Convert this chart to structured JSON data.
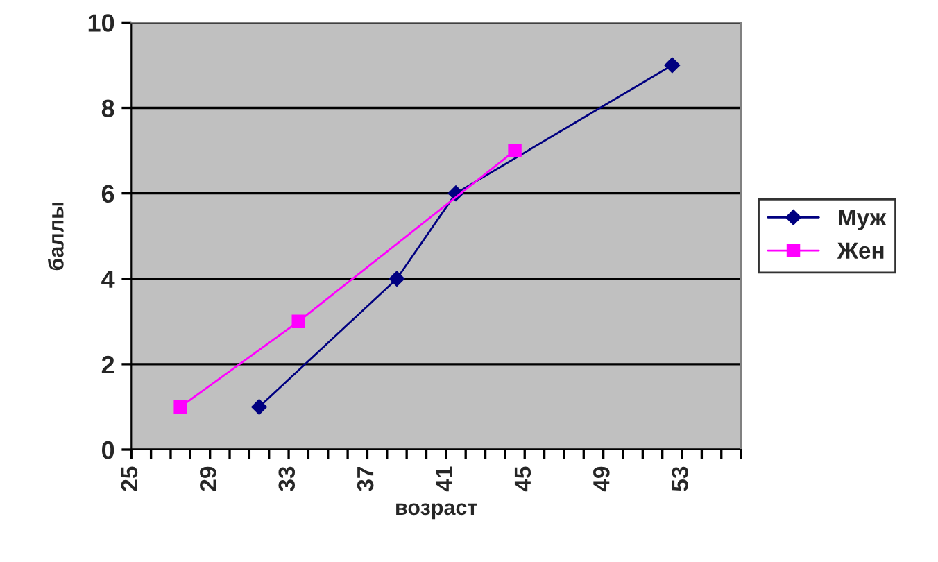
{
  "chart_data": {
    "type": "line",
    "xlabel": "возраст",
    "ylabel": "баллы",
    "series": [
      {
        "name": "Муж",
        "color": "#000080",
        "marker": "diamond",
        "x": [
          31.5,
          38.5,
          41.5,
          52.5
        ],
        "values": [
          1,
          4,
          6,
          9
        ]
      },
      {
        "name": "Жен",
        "color": "#ff00ff",
        "marker": "square",
        "x": [
          27.5,
          33.5,
          44.5
        ],
        "values": [
          1,
          3,
          7
        ]
      }
    ],
    "xlim": [
      25,
      56
    ],
    "xticks": [
      25,
      {
        "value": 26,
        "label": null
      },
      {
        "value": 27,
        "label": null
      },
      {
        "value": 28,
        "label": null
      },
      29,
      {
        "value": 30,
        "label": null
      },
      {
        "value": 31,
        "label": null
      },
      {
        "value": 32,
        "label": null
      },
      33,
      {
        "value": 34,
        "label": null
      },
      {
        "value": 35,
        "label": null
      },
      {
        "value": 36,
        "label": null
      },
      37,
      {
        "value": 38,
        "label": null
      },
      {
        "value": 39,
        "label": null
      },
      {
        "value": 40,
        "label": null
      },
      41,
      {
        "value": 42,
        "label": null
      },
      {
        "value": 43,
        "label": null
      },
      {
        "value": 44,
        "label": null
      },
      45,
      {
        "value": 46,
        "label": null
      },
      {
        "value": 47,
        "label": null
      },
      {
        "value": 48,
        "label": null
      },
      49,
      {
        "value": 50,
        "label": null
      },
      {
        "value": 51,
        "label": null
      },
      {
        "value": 52,
        "label": null
      },
      53,
      {
        "value": 54,
        "label": null
      },
      {
        "value": 55,
        "label": null
      },
      {
        "value": 56,
        "label": null
      }
    ],
    "ylim": [
      0,
      10
    ],
    "yticks": [
      0,
      2,
      4,
      6,
      8,
      10
    ],
    "grid": "y",
    "legend": "right"
  }
}
